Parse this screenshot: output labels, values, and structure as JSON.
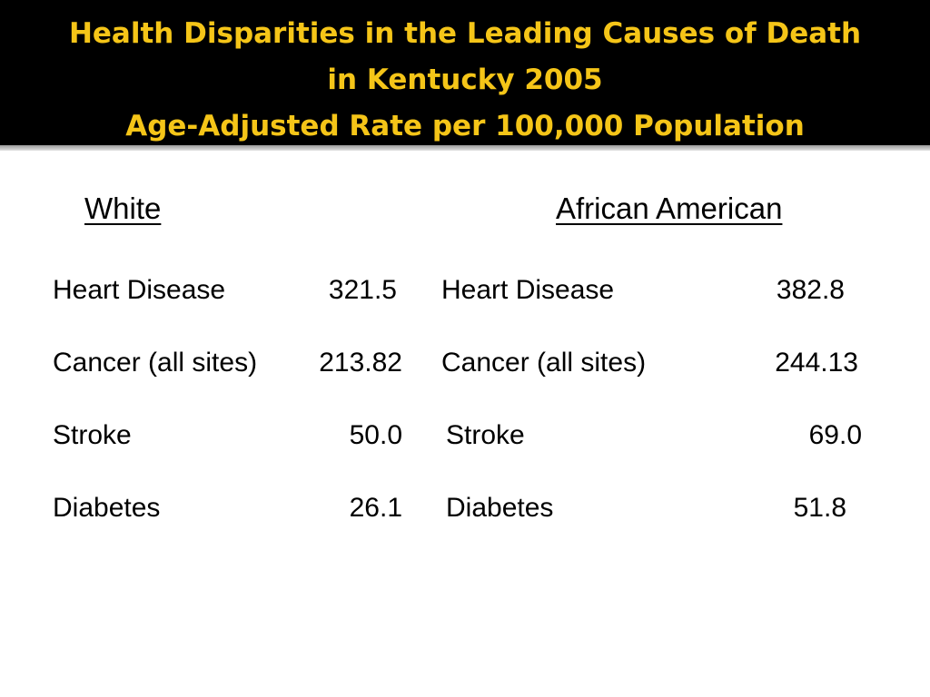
{
  "title": {
    "line1": "Health Disparities in the Leading Causes of Death",
    "line2": "in Kentucky 2005",
    "line3": "Age-Adjusted Rate per 100,000 Population"
  },
  "columns": {
    "white": "White",
    "african_american": "African American"
  },
  "rows": [
    {
      "white_label": "Heart Disease",
      "white_value": "321.5",
      "aa_label": "Heart Disease",
      "aa_value": "382.8"
    },
    {
      "white_label": "Cancer (all sites)",
      "white_value": "213.82",
      "aa_label": "Cancer (all sites)",
      "aa_value": "244.13"
    },
    {
      "white_label": "Stroke",
      "white_value": "50.0",
      "aa_label": "Stroke",
      "aa_value": "69.0"
    },
    {
      "white_label": "Diabetes",
      "white_value": "26.1",
      "aa_label": "Diabetes",
      "aa_value": "51.8"
    }
  ],
  "colors": {
    "title_band": "#000000",
    "title_text": "#f5c518",
    "body_text": "#000000",
    "background": "#ffffff"
  }
}
